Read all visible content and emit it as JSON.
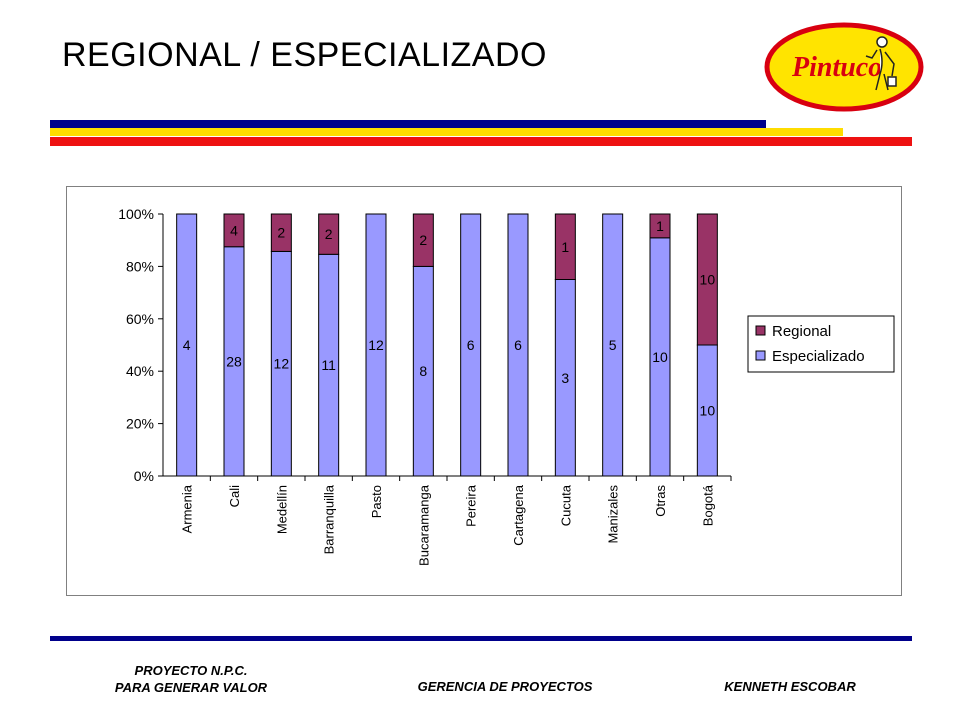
{
  "slide": {
    "title": "REGIONAL / ESPECIALIZADO",
    "logo_text": "Pintuco",
    "colors": {
      "navy": "#00008b",
      "yellow": "#ffdd00",
      "red": "#ee1111",
      "logo_red": "#d80010",
      "logo_yellow": "#ffe400"
    }
  },
  "footer": {
    "left_line1": "PROYECTO N.P.C.",
    "left_line2": "PARA GENERAR VALOR",
    "middle": "GERENCIA DE PROYECTOS",
    "right": "KENNETH ESCOBAR"
  },
  "chart_data": {
    "type": "bar",
    "stacked": "percent",
    "categories": [
      "Armenia",
      "Cali",
      "Medellín",
      "Barranquilla",
      "Pasto",
      "Bucaramanga",
      "Pereira",
      "Cartagena",
      "Cucuta",
      "Manizales",
      "Otras",
      "Bogotá"
    ],
    "series": [
      {
        "name": "Especializado",
        "color": "#9999ff",
        "values": [
          4,
          28,
          12,
          11,
          12,
          8,
          6,
          6,
          3,
          5,
          10,
          10
        ]
      },
      {
        "name": "Regional",
        "color": "#993366",
        "values": [
          0,
          4,
          2,
          2,
          0,
          2,
          0,
          0,
          1,
          0,
          1,
          10
        ]
      }
    ],
    "y_ticks": [
      "0%",
      "20%",
      "40%",
      "60%",
      "80%",
      "100%"
    ],
    "ylim": [
      0,
      100
    ],
    "legend_position": "right",
    "grid": false
  }
}
